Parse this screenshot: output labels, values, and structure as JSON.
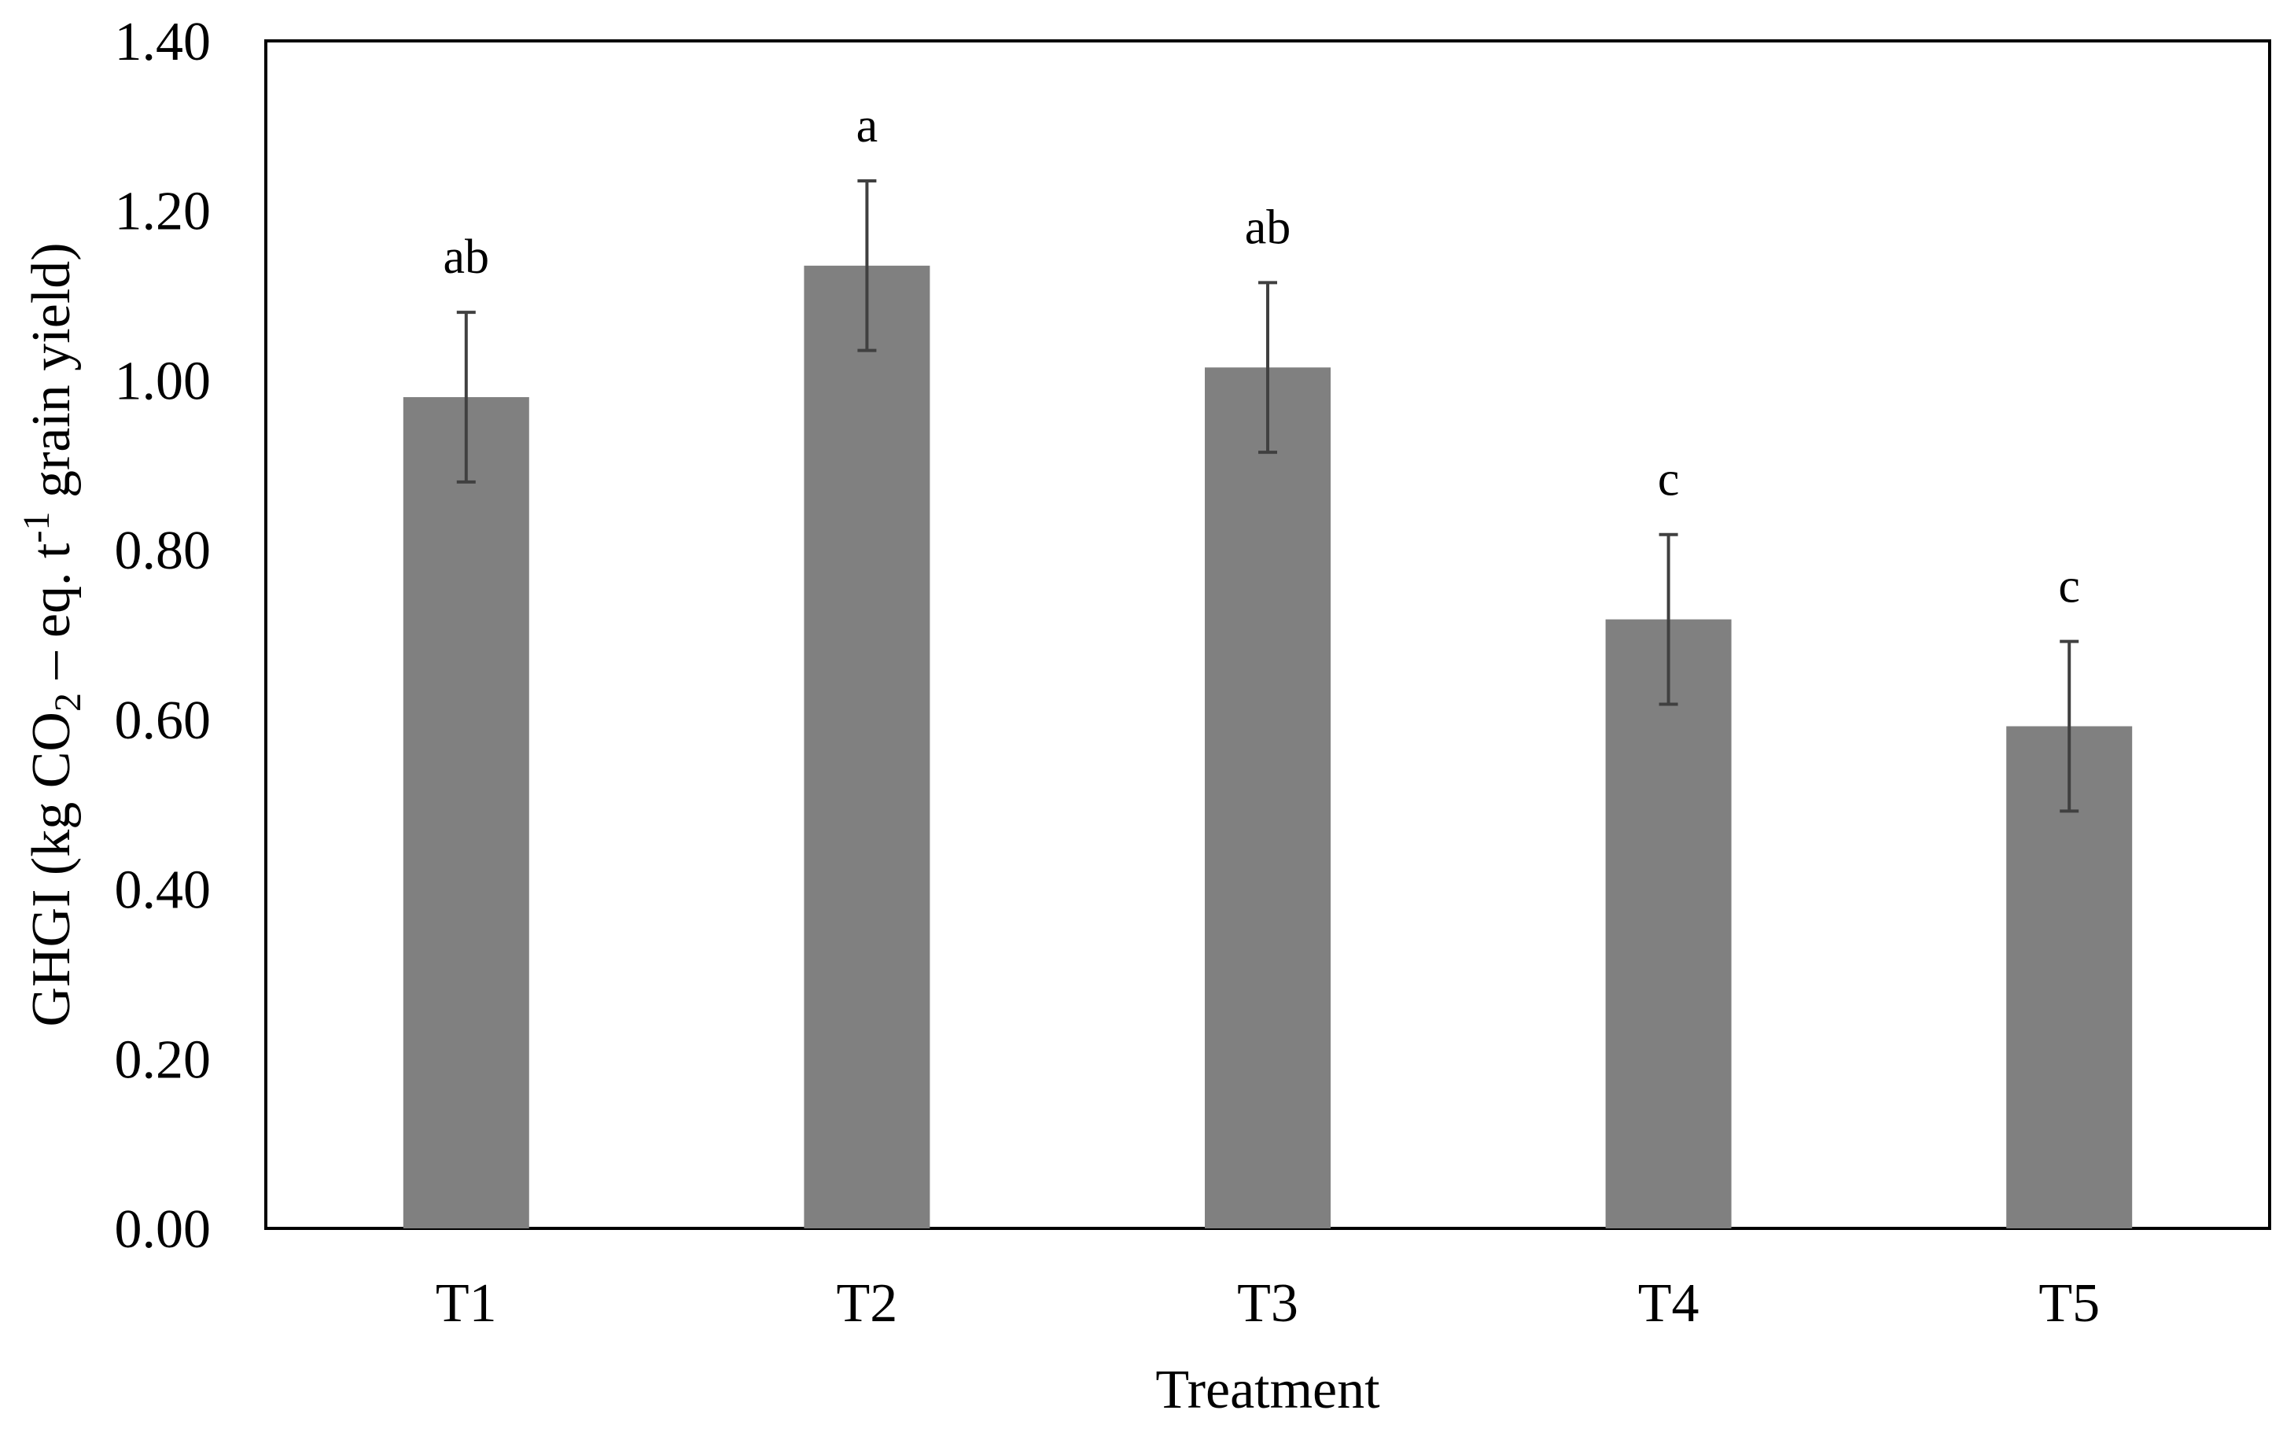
{
  "chart_data": {
    "type": "bar",
    "categories": [
      "T1",
      "T2",
      "T3",
      "T4",
      "T5"
    ],
    "values": [
      0.98,
      1.135,
      1.015,
      0.718,
      0.592
    ],
    "errors": [
      0.1,
      0.1,
      0.1,
      0.1,
      0.1
    ],
    "significance": [
      "ab",
      "a",
      "ab",
      "c",
      "c"
    ],
    "xlabel": "Treatment",
    "ylabel": {
      "prefix": "GHGI (kg CO",
      "sub": "2",
      "middle": " – eq.  t",
      "sup": "-1",
      "suffix": " grain yield)"
    },
    "ylim": [
      0,
      1.4
    ],
    "yticks": [
      0,
      0.2,
      0.4,
      0.6,
      0.8,
      1.0,
      1.2,
      1.4
    ],
    "ytick_labels": [
      "0.00",
      "0.20",
      "0.40",
      "0.60",
      "0.80",
      "1.00",
      "1.20",
      "1.40"
    ],
    "grid": false,
    "bar_color": "#808080",
    "error_color": "#404040"
  }
}
